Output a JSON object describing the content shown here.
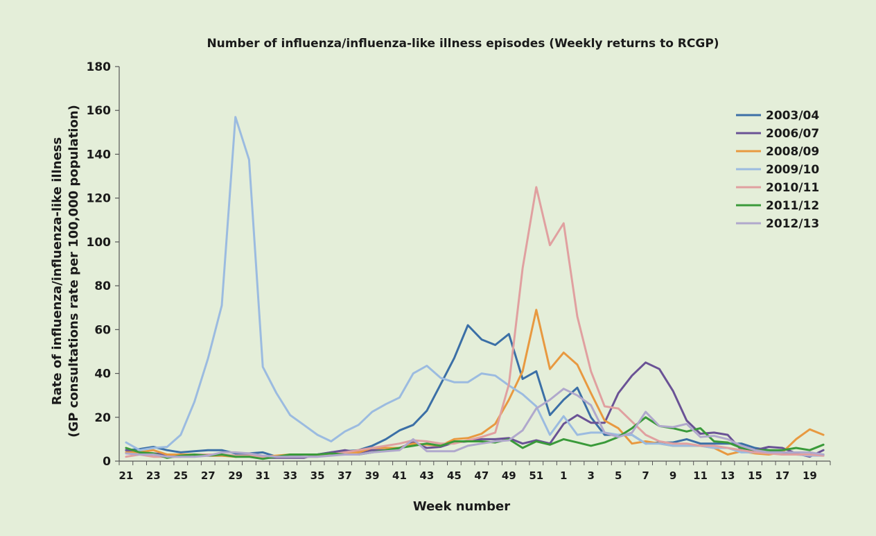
{
  "chart_data": {
    "type": "line",
    "title": "Number of influenza/influenza-like illness episodes (Weekly returns to RCGP)",
    "xlabel": "Week number",
    "ylabel_line1": "Rate of influenza/influenza-like illness",
    "ylabel_line2": "(GP consultations rate per 100,000 population)",
    "ylim": [
      0,
      180
    ],
    "yticks": [
      0,
      20,
      40,
      60,
      80,
      100,
      120,
      140,
      160,
      180
    ],
    "x": [
      21,
      22,
      23,
      24,
      25,
      26,
      27,
      28,
      29,
      30,
      31,
      32,
      33,
      34,
      35,
      36,
      37,
      38,
      39,
      40,
      41,
      42,
      43,
      44,
      45,
      46,
      47,
      48,
      49,
      50,
      51,
      52,
      1,
      2,
      3,
      4,
      5,
      6,
      7,
      8,
      9,
      10,
      11,
      12,
      13,
      14,
      15,
      16,
      17,
      18,
      19,
      20
    ],
    "xtick_labels": [
      "21",
      "23",
      "25",
      "27",
      "29",
      "31",
      "33",
      "35",
      "37",
      "39",
      "41",
      "43",
      "45",
      "47",
      "49",
      "51",
      "1",
      "3",
      "5",
      "7",
      "9",
      "11",
      "13",
      "15",
      "17",
      "19"
    ],
    "legend_position": "top-right",
    "grid": false,
    "series": [
      {
        "name": "2003/04",
        "color": "#3b6fa6",
        "values": [
          5,
          5.5,
          6.5,
          5,
          4,
          4.5,
          5,
          5,
          3.5,
          3.5,
          4,
          2,
          2.5,
          3,
          3,
          4,
          4.5,
          5,
          7,
          10,
          14,
          16.5,
          23,
          35,
          47,
          62,
          55.5,
          53,
          58,
          37.5,
          41,
          21,
          28,
          33.5,
          20,
          12,
          12,
          12,
          8,
          8.5,
          8.5,
          10,
          8,
          8,
          8,
          8,
          6,
          5,
          4,
          3,
          3,
          3
        ]
      },
      {
        "name": "2006/07",
        "color": "#6a5295",
        "values": [
          5,
          4,
          3.5,
          3,
          2.5,
          2.5,
          2.5,
          2.5,
          2.5,
          2.5,
          1.5,
          1.5,
          1.5,
          1.5,
          3,
          4,
          5,
          4,
          5,
          5,
          6,
          8.5,
          6,
          6.5,
          8.5,
          9,
          10,
          10,
          10.5,
          8,
          9.5,
          8,
          17,
          21,
          17.5,
          17.5,
          31,
          39,
          45,
          42,
          32,
          18.5,
          12.5,
          13,
          12,
          5,
          5,
          6.5,
          6,
          3.5,
          2,
          5
        ]
      },
      {
        "name": "2008/09",
        "color": "#e89940",
        "values": [
          4,
          4,
          5,
          3,
          3,
          3,
          2.5,
          2.5,
          2,
          2.5,
          2,
          2.5,
          3,
          3,
          3,
          3,
          4,
          4,
          6,
          6,
          6,
          8,
          7.5,
          7,
          10,
          10.5,
          12.5,
          17,
          28,
          41,
          69,
          42,
          49.5,
          44,
          31,
          18.5,
          15,
          8,
          9,
          8,
          7,
          7,
          7,
          6,
          3,
          4.5,
          3.5,
          3,
          4,
          10,
          14.5,
          12
        ]
      },
      {
        "name": "2009/10",
        "color": "#9bbbe0",
        "values": [
          8.5,
          5,
          6,
          6.5,
          12,
          27,
          47,
          71,
          157,
          137.5,
          43,
          31,
          21,
          16.5,
          12,
          9,
          13.5,
          16.5,
          22.5,
          26,
          29,
          40,
          43.5,
          38,
          36,
          36,
          40,
          39,
          34.5,
          30.5,
          25,
          12,
          20.5,
          12,
          13,
          13,
          12,
          12,
          8,
          8,
          7,
          7,
          7,
          6,
          6,
          4,
          4,
          4,
          3,
          3,
          2.5,
          2.5
        ]
      },
      {
        "name": "2010/11",
        "color": "#e0a0a0",
        "values": [
          2,
          3,
          2,
          2,
          2,
          3,
          3,
          3,
          2.5,
          2.5,
          2,
          2,
          2,
          2,
          2,
          3,
          4,
          5,
          6,
          7,
          8,
          9.5,
          9,
          8,
          8,
          9.5,
          11,
          13,
          35,
          88,
          125,
          98.5,
          108.5,
          66,
          41,
          25,
          24,
          18,
          12,
          9,
          8,
          8,
          7,
          7,
          6,
          5,
          4,
          3.5,
          3,
          3,
          3,
          2.5
        ]
      },
      {
        "name": "2011/12",
        "color": "#3a9a3a",
        "values": [
          6,
          4,
          3.5,
          1.5,
          2.5,
          3,
          2.5,
          3,
          2,
          2,
          1,
          2,
          3,
          3,
          3,
          3.5,
          3,
          3,
          4,
          5,
          6,
          7,
          8,
          7,
          9,
          9,
          9,
          8.5,
          10,
          6,
          9,
          7.5,
          10,
          8.5,
          7,
          8.5,
          11,
          15,
          20,
          16,
          15,
          13.5,
          15,
          9,
          8.5,
          6,
          5,
          5,
          5,
          6,
          5,
          7.5
        ]
      },
      {
        "name": "2012/13",
        "color": "#b0a8cc",
        "values": [
          3.5,
          3,
          3,
          2,
          2,
          2,
          2.5,
          4,
          4,
          3.5,
          2.5,
          2,
          2,
          2,
          2,
          2.5,
          3,
          3,
          4,
          4.5,
          5,
          10,
          4.5,
          4.5,
          4.5,
          7,
          8,
          9,
          9.5,
          14,
          24,
          28,
          33,
          30,
          25.5,
          13,
          11,
          13,
          22.5,
          16,
          15.5,
          17,
          11,
          11.5,
          10,
          7,
          5,
          4,
          4,
          4,
          4,
          3
        ]
      }
    ]
  }
}
